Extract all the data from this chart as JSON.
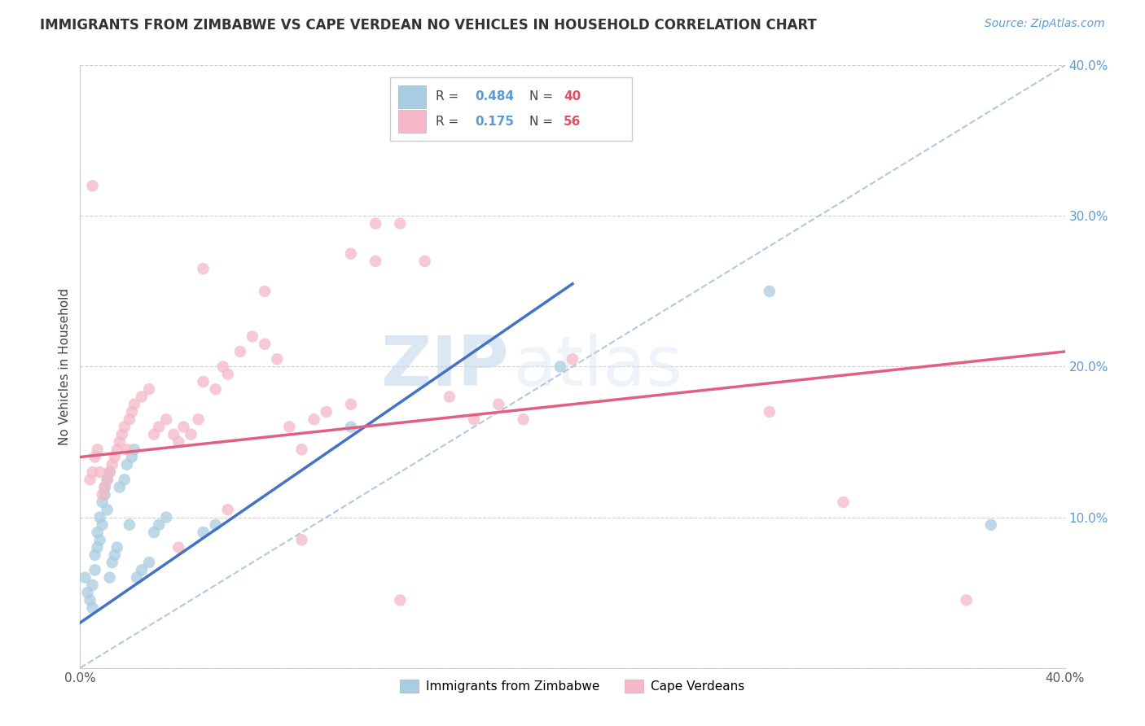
{
  "title": "IMMIGRANTS FROM ZIMBABWE VS CAPE VERDEAN NO VEHICLES IN HOUSEHOLD CORRELATION CHART",
  "source": "Source: ZipAtlas.com",
  "ylabel": "No Vehicles in Household",
  "xlim": [
    0.0,
    0.4
  ],
  "ylim": [
    0.0,
    0.4
  ],
  "legend1_label": "Immigrants from Zimbabwe",
  "legend2_label": "Cape Verdeans",
  "R1": 0.484,
  "N1": 40,
  "R2": 0.175,
  "N2": 56,
  "blue_color": "#a8cce0",
  "pink_color": "#f4b8c8",
  "blue_line_color": "#4472c4",
  "pink_line_color": "#e06080",
  "diagonal_color": "#b0c8e0",
  "background_color": "#ffffff",
  "watermark_zip": "ZIP",
  "watermark_atlas": "atlas",
  "blue_line_x0": 0.0,
  "blue_line_y0": 0.03,
  "blue_line_x1": 0.2,
  "blue_line_y1": 0.255,
  "pink_line_x0": 0.0,
  "pink_line_y0": 0.14,
  "pink_line_x1": 0.4,
  "pink_line_y1": 0.21,
  "blue_scatter_x": [
    0.002,
    0.003,
    0.004,
    0.005,
    0.005,
    0.006,
    0.006,
    0.007,
    0.007,
    0.008,
    0.008,
    0.009,
    0.009,
    0.01,
    0.01,
    0.011,
    0.011,
    0.012,
    0.012,
    0.013,
    0.014,
    0.015,
    0.016,
    0.018,
    0.019,
    0.02,
    0.021,
    0.022,
    0.023,
    0.025,
    0.028,
    0.03,
    0.032,
    0.035,
    0.05,
    0.055,
    0.11,
    0.195,
    0.28,
    0.37
  ],
  "blue_scatter_y": [
    0.06,
    0.05,
    0.045,
    0.04,
    0.055,
    0.065,
    0.075,
    0.08,
    0.09,
    0.085,
    0.1,
    0.095,
    0.11,
    0.115,
    0.12,
    0.105,
    0.125,
    0.13,
    0.06,
    0.07,
    0.075,
    0.08,
    0.12,
    0.125,
    0.135,
    0.095,
    0.14,
    0.145,
    0.06,
    0.065,
    0.07,
    0.09,
    0.095,
    0.1,
    0.09,
    0.095,
    0.16,
    0.2,
    0.25,
    0.095
  ],
  "pink_scatter_x": [
    0.004,
    0.005,
    0.006,
    0.007,
    0.008,
    0.009,
    0.01,
    0.011,
    0.012,
    0.013,
    0.014,
    0.015,
    0.016,
    0.017,
    0.018,
    0.019,
    0.02,
    0.021,
    0.022,
    0.025,
    0.028,
    0.03,
    0.032,
    0.035,
    0.038,
    0.04,
    0.042,
    0.045,
    0.048,
    0.05,
    0.055,
    0.058,
    0.06,
    0.065,
    0.07,
    0.075,
    0.08,
    0.085,
    0.09,
    0.095,
    0.1,
    0.11,
    0.12,
    0.13,
    0.15,
    0.16,
    0.17,
    0.2,
    0.28,
    0.31,
    0.36,
    0.04,
    0.06,
    0.09,
    0.13,
    0.18
  ],
  "pink_scatter_y": [
    0.125,
    0.13,
    0.14,
    0.145,
    0.13,
    0.115,
    0.12,
    0.125,
    0.13,
    0.135,
    0.14,
    0.145,
    0.15,
    0.155,
    0.16,
    0.145,
    0.165,
    0.17,
    0.175,
    0.18,
    0.185,
    0.155,
    0.16,
    0.165,
    0.155,
    0.15,
    0.16,
    0.155,
    0.165,
    0.19,
    0.185,
    0.2,
    0.195,
    0.21,
    0.22,
    0.215,
    0.205,
    0.16,
    0.145,
    0.165,
    0.17,
    0.175,
    0.27,
    0.295,
    0.18,
    0.165,
    0.175,
    0.205,
    0.17,
    0.11,
    0.045,
    0.08,
    0.105,
    0.085,
    0.045,
    0.165
  ],
  "pink_high_x": [
    0.005,
    0.05,
    0.075,
    0.11,
    0.12,
    0.14
  ],
  "pink_high_y": [
    0.32,
    0.265,
    0.25,
    0.275,
    0.295,
    0.27
  ]
}
